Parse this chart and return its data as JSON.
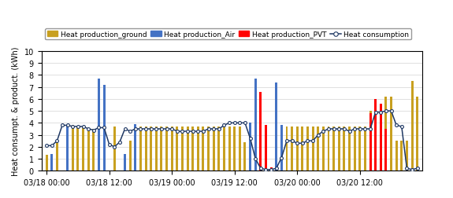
{
  "ylabel": "Heat consumpt. & product. (kWh)",
  "ylim": [
    0,
    10
  ],
  "yticks": [
    0,
    1,
    2,
    3,
    4,
    5,
    6,
    7,
    8,
    9,
    10
  ],
  "xtick_labels": [
    "03/18 00:00",
    "03/18 12:00",
    "03/19 00:00",
    "03/19 12:00",
    "03/20 00:00",
    "03/20 12:00"
  ],
  "xtick_pos": [
    0,
    12,
    24,
    36,
    48,
    60
  ],
  "xlim": [
    -1,
    72
  ],
  "color_ground": "#C8A020",
  "color_air": "#4472C4",
  "color_pvt": "#FF0000",
  "color_consumption": "#1F3864",
  "bar_width": 0.45,
  "ground_x": [
    0,
    2,
    4,
    5,
    6,
    7,
    8,
    9,
    13,
    15,
    16,
    18,
    19,
    20,
    21,
    22,
    23,
    24,
    25,
    26,
    27,
    28,
    29,
    30,
    31,
    32,
    33,
    34,
    35,
    36,
    37,
    38,
    46,
    47,
    48,
    49,
    50,
    51,
    52,
    53,
    54,
    55,
    56,
    57,
    58,
    59,
    60,
    61,
    62,
    63,
    64,
    65,
    66,
    67,
    68,
    69,
    70,
    71
  ],
  "ground_y": [
    1.3,
    2.4,
    3.8,
    3.8,
    3.7,
    3.7,
    3.5,
    3.5,
    3.7,
    1.0,
    2.5,
    3.7,
    3.7,
    3.7,
    3.7,
    3.7,
    3.7,
    3.7,
    3.7,
    3.7,
    3.7,
    3.7,
    3.7,
    3.7,
    3.7,
    3.7,
    3.7,
    3.7,
    3.7,
    3.7,
    3.7,
    2.4,
    3.7,
    3.7,
    3.7,
    3.7,
    3.7,
    3.7,
    3.7,
    3.7,
    3.7,
    3.7,
    3.7,
    3.7,
    3.7,
    3.7,
    3.7,
    3.7,
    5.0,
    3.7,
    3.7,
    6.2,
    6.2,
    2.5,
    2.5,
    2.5,
    7.5,
    6.2
  ],
  "air_x": [
    1,
    4,
    10,
    11,
    15,
    17,
    39,
    40,
    44,
    45
  ],
  "air_y": [
    1.4,
    3.8,
    7.7,
    7.2,
    1.4,
    3.9,
    4.0,
    7.7,
    7.4,
    3.8
  ],
  "pvt_x": [
    41,
    42,
    43,
    62,
    63,
    64,
    65
  ],
  "pvt_y": [
    6.6,
    3.8,
    0.3,
    4.8,
    6.0,
    5.6,
    3.5
  ],
  "consumption_x": [
    0,
    1,
    2,
    3,
    4,
    5,
    6,
    7,
    8,
    9,
    10,
    11,
    12,
    13,
    14,
    15,
    16,
    17,
    18,
    19,
    20,
    21,
    22,
    23,
    24,
    25,
    26,
    27,
    28,
    29,
    30,
    31,
    32,
    33,
    34,
    35,
    36,
    37,
    38,
    39,
    40,
    41,
    42,
    43,
    44,
    45,
    46,
    47,
    48,
    49,
    50,
    51,
    52,
    53,
    54,
    55,
    56,
    57,
    58,
    59,
    60,
    61,
    62,
    63,
    64,
    65,
    66,
    67,
    68,
    69,
    70,
    71
  ],
  "consumption_y": [
    2.1,
    2.1,
    2.5,
    3.8,
    3.8,
    3.7,
    3.7,
    3.7,
    3.5,
    3.4,
    3.6,
    3.6,
    2.2,
    2.0,
    2.4,
    3.5,
    3.3,
    3.5,
    3.5,
    3.5,
    3.5,
    3.5,
    3.5,
    3.5,
    3.5,
    3.3,
    3.3,
    3.3,
    3.3,
    3.3,
    3.3,
    3.5,
    3.5,
    3.5,
    3.8,
    4.0,
    4.0,
    4.0,
    4.0,
    2.7,
    1.0,
    0.2,
    0.1,
    0.1,
    0.2,
    1.1,
    2.5,
    2.5,
    2.3,
    2.3,
    2.5,
    2.5,
    3.0,
    3.3,
    3.5,
    3.5,
    3.5,
    3.5,
    3.3,
    3.5,
    3.5,
    3.5,
    3.5,
    4.9,
    4.9,
    5.0,
    5.0,
    3.8,
    3.7,
    0.2,
    0.1,
    0.2
  ]
}
